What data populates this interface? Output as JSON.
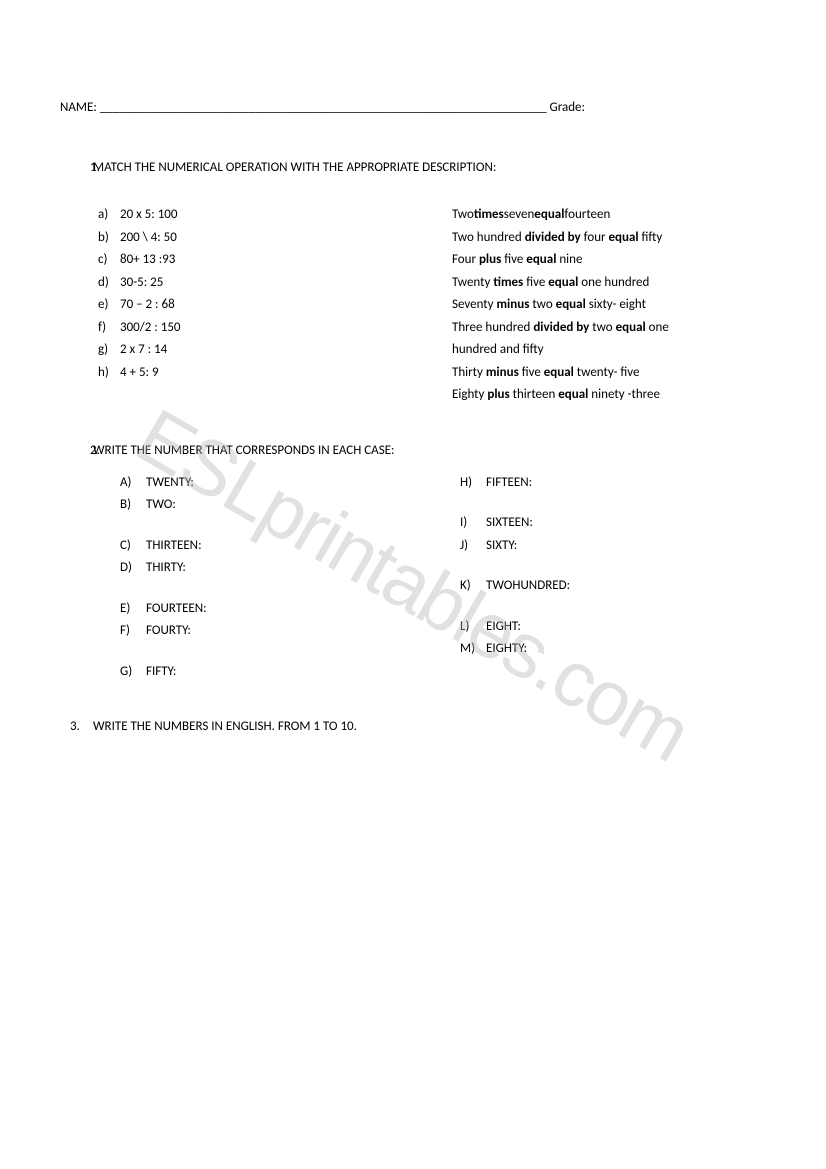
{
  "header": {
    "name_label": "NAME:",
    "name_line": "_____________________________________________________________________",
    "grade_label": "Grade:"
  },
  "watermark": "ESLprintables.com",
  "q1": {
    "number": "1.",
    "title": "MATCH THE NUMERICAL OPERATION WITH THE APPROPRIATE DESCRIPTION:",
    "left": [
      {
        "b": "a)",
        "t": "20 x 5: 100"
      },
      {
        "b": "b)",
        "t": "200 \\ 4: 50"
      },
      {
        "b": "c)",
        "t": "80+ 13 :93"
      },
      {
        "b": "d)",
        "t": "30-5: 25"
      },
      {
        "b": "e)",
        "t": "70 – 2 : 68"
      },
      {
        "b": "f)",
        "t": "300/2 : 150"
      },
      {
        "b": "g)",
        "t": "2 x 7 : 14"
      },
      {
        "b": "h)",
        "t": "4 + 5: 9"
      }
    ],
    "r1": {
      "p1": "Two",
      "b1": "times",
      "p2": "seven",
      "b2": "equal",
      "p3": "fourteen"
    },
    "r2": {
      "p1": "Two hundred ",
      "b1": "divided by",
      "p2": " four ",
      "b2": "equal",
      "p3": " fifty"
    },
    "r3": {
      "p1": "Four ",
      "b1": "plus",
      "p2": " five ",
      "b2": "equal",
      "p3": " nine"
    },
    "r4": {
      "p1": "Twenty ",
      "b1": "times",
      "p2": " five ",
      "b2": "equal",
      "p3": " one hundred"
    },
    "r5": {
      "p1": "Seventy ",
      "b1": "minus",
      "p2": " two ",
      "b2": "equal",
      "p3": " sixty- eight"
    },
    "r6": {
      "p1": "Three hundred ",
      "b1": "divided by",
      "p2": " two ",
      "b2": "equal",
      "p3": " one"
    },
    "r6b": "hundred and fifty",
    "r7": {
      "p1": "Thirty ",
      "b1": "minus",
      "p2": " five ",
      "b2": "equal",
      "p3": " twenty- five"
    },
    "r8": {
      "p1": "Eighty ",
      "b1": "plus",
      "p2": " thirteen ",
      "b2": "equal",
      "p3": " ninety -three"
    }
  },
  "q2": {
    "number": "2.",
    "title": "WRITE THE NUMBER THAT CORRESPONDS IN EACH CASE:",
    "left": [
      {
        "b": "A)",
        "t": "TWENTY:"
      },
      {
        "b": "B)",
        "t": "TWO:"
      },
      {
        "gap": true
      },
      {
        "b": "C)",
        "t": "THIRTEEN:"
      },
      {
        "b": "D)",
        "t": "THIRTY:"
      },
      {
        "gap": true
      },
      {
        "b": "E)",
        "t": "FOURTEEN:"
      },
      {
        "b": "F)",
        "t": "FOURTY:"
      },
      {
        "gap": true
      },
      {
        "b": "G)",
        "t": "FIFTY:"
      }
    ],
    "right": [
      {
        "b": "H)",
        "t": "FIFTEEN:"
      },
      {
        "gap": true
      },
      {
        "b": "I)",
        "t": "SIXTEEN:"
      },
      {
        "b": "J)",
        "t": "SIXTY:"
      },
      {
        "gap": true
      },
      {
        "b": "K)",
        "t": "TWOHUNDRED:"
      },
      {
        "gap": true
      },
      {
        "b": "L)",
        "t": "EIGHT:"
      },
      {
        "b": "M)",
        "t": "EIGHTY:"
      }
    ]
  },
  "q3": {
    "number": "3.",
    "title": "WRITE THE NUMBERS IN ENGLISH. FROM 1 TO 10."
  }
}
